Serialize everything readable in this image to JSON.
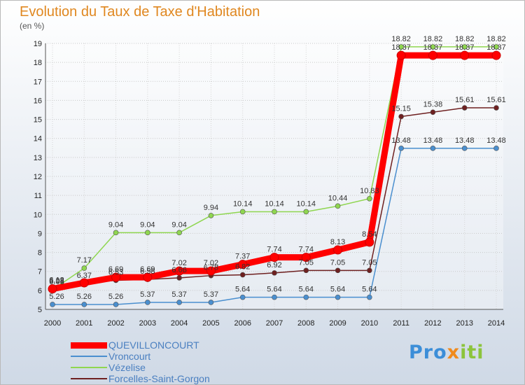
{
  "chart_data": {
    "type": "line",
    "title": "Evolution du Taux de Taxe d'Habitation",
    "unit_label": "(en %)",
    "x": [
      "2000",
      "2001",
      "2002",
      "2003",
      "2004",
      "2005",
      "2006",
      "2007",
      "2008",
      "2009",
      "2010",
      "2011",
      "2012",
      "2013",
      "2014"
    ],
    "ylim": [
      5,
      19
    ],
    "yticks": [
      5,
      6,
      7,
      8,
      9,
      10,
      11,
      12,
      13,
      14,
      15,
      16,
      17,
      18,
      19
    ],
    "grid": true,
    "legend_position": "bottom-left",
    "series": [
      {
        "name": "QUEVILLONCOURT",
        "color": "#ff0000",
        "values": [
          6.08,
          6.4,
          6.69,
          6.69,
          7.02,
          7.02,
          7.37,
          7.74,
          7.74,
          8.13,
          8.54,
          18.37,
          18.37,
          18.37,
          18.37
        ],
        "labels": [
          "6.08",
          "",
          "6.69",
          "6.69",
          "7.02",
          "7.02",
          "7.37",
          "7.74",
          "7.74",
          "8.13",
          "8.54",
          "18.37",
          "18.37",
          "18.37",
          "18.37"
        ]
      },
      {
        "name": "Vroncourt",
        "color": "#4a8fcf",
        "values": [
          5.26,
          5.26,
          5.26,
          5.37,
          5.37,
          5.37,
          5.64,
          5.64,
          5.64,
          5.64,
          5.64,
          13.48,
          13.48,
          13.48,
          13.48
        ],
        "labels": [
          "5.26",
          "5.26",
          "5.26",
          "5.37",
          "5.37",
          "5.37",
          "5.64",
          "5.64",
          "5.64",
          "5.64",
          "5.64",
          "13.48",
          "13.48",
          "13.48",
          "13.48"
        ]
      },
      {
        "name": "Vézelise",
        "color": "#8fd650",
        "values": [
          6.03,
          7.17,
          9.04,
          9.04,
          9.04,
          9.94,
          10.14,
          10.14,
          10.14,
          10.44,
          10.83,
          18.82,
          18.82,
          18.82,
          18.82
        ],
        "labels": [
          "6.03",
          "7.17",
          "9.04",
          "9.04",
          "9.04",
          "9.94",
          "10.14",
          "10.14",
          "10.14",
          "10.44",
          "10.83",
          "18.82",
          "18.82",
          "18.82",
          "18.82"
        ]
      },
      {
        "name": "Forcelles-Saint-Gorgon",
        "color": "#6e2020",
        "values": [
          6.12,
          6.37,
          6.53,
          6.58,
          6.66,
          6.78,
          6.82,
          6.92,
          7.05,
          7.05,
          7.05,
          15.15,
          15.38,
          15.61,
          15.61
        ],
        "labels": [
          "6.12",
          "6.37",
          "6.53",
          "6.58",
          "6.66",
          "6.78",
          "6.82",
          "6.92",
          "7.05",
          "7.05",
          "7.05",
          "15.15",
          "15.38",
          "15.61",
          "15.61"
        ]
      }
    ]
  },
  "logo": {
    "part1": "Pro",
    "part2": "x",
    "part3": "iti"
  }
}
